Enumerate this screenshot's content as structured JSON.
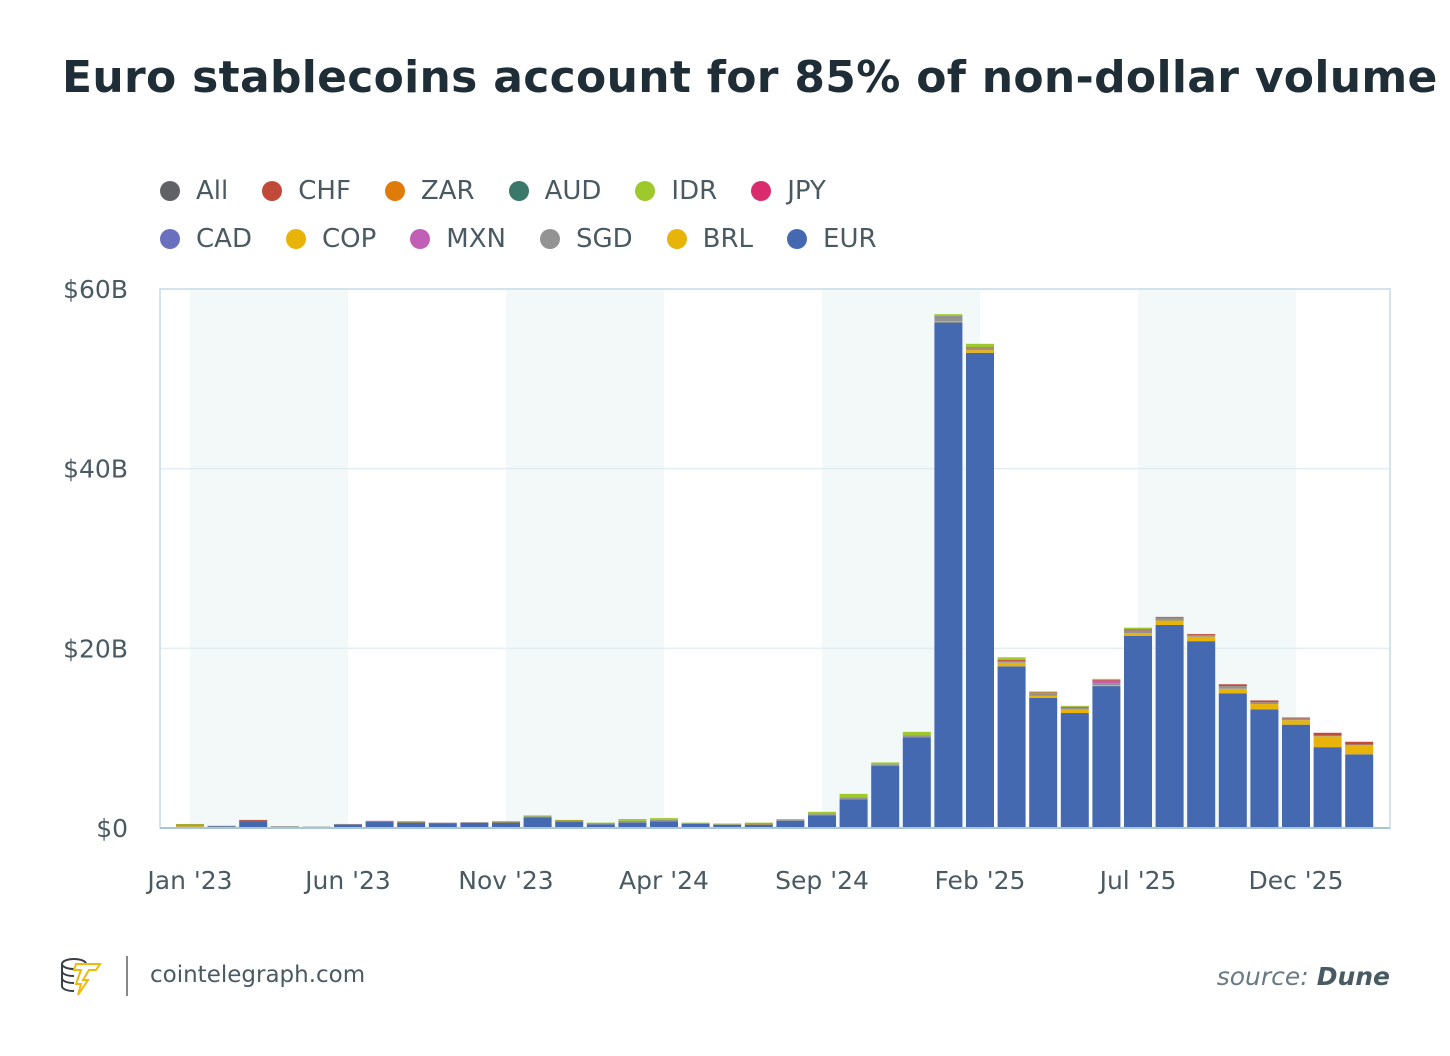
{
  "title": "Euro stablecoins account for 85% of non-dollar volume",
  "legend": [
    {
      "name": "All",
      "color": "#5f6166"
    },
    {
      "name": "CHF",
      "color": "#c0493a"
    },
    {
      "name": "ZAR",
      "color": "#de7b0b"
    },
    {
      "name": "AUD",
      "color": "#3a786b"
    },
    {
      "name": "IDR",
      "color": "#9dc92c"
    },
    {
      "name": "JPY",
      "color": "#d92c6e"
    },
    {
      "name": "CAD",
      "color": "#6a6fc0"
    },
    {
      "name": "COP",
      "color": "#e8b40a"
    },
    {
      "name": "MXN",
      "color": "#c05fb5"
    },
    {
      "name": "SGD",
      "color": "#939393"
    },
    {
      "name": "BRL",
      "color": "#e8b40a"
    },
    {
      "name": "EUR",
      "color": "#4469b0"
    }
  ],
  "chart_data": {
    "type": "bar",
    "stacked": true,
    "title": "Euro stablecoins account for 85% of non-dollar volume",
    "xlabel": "",
    "ylabel": "",
    "ylim": [
      0,
      60
    ],
    "y_ticks": [
      "$0",
      "$20B",
      "$40B",
      "$60B"
    ],
    "y_tick_values": [
      0,
      20,
      40,
      60
    ],
    "x_ticks": [
      "Jan '23",
      "Jun '23",
      "Nov '23",
      "Apr '24",
      "Sep '24",
      "Feb '25",
      "Jul '25",
      "Dec '25"
    ],
    "x_tick_indices": [
      0,
      5,
      10,
      15,
      20,
      25,
      30,
      35
    ],
    "grid": true,
    "legend_position": "top-left",
    "categories": [
      "2023-01",
      "2023-02",
      "2023-03",
      "2023-04",
      "2023-05",
      "2023-06",
      "2023-07",
      "2023-08",
      "2023-09",
      "2023-10",
      "2023-11",
      "2023-12",
      "2024-01",
      "2024-02",
      "2024-03",
      "2024-04",
      "2024-05",
      "2024-06",
      "2024-07",
      "2024-08",
      "2024-09",
      "2024-10",
      "2024-11",
      "2024-12",
      "2025-01",
      "2025-02",
      "2025-03",
      "2025-04",
      "2025-05",
      "2025-06",
      "2025-07",
      "2025-08",
      "2025-09",
      "2025-10",
      "2025-11",
      "2025-12",
      "2026-01",
      "2026-02"
    ],
    "series": [
      {
        "name": "EUR",
        "color": "#4469b0",
        "values": [
          0.15,
          0.2,
          0.8,
          0.15,
          0.12,
          0.4,
          0.7,
          0.65,
          0.55,
          0.6,
          0.65,
          1.2,
          0.7,
          0.4,
          0.6,
          0.75,
          0.45,
          0.35,
          0.4,
          0.8,
          1.4,
          3.2,
          6.9,
          10.1,
          56.3,
          52.9,
          18.0,
          14.5,
          12.8,
          15.8,
          21.4,
          22.6,
          20.8,
          15.0,
          13.2,
          11.5,
          9.0,
          8.2
        ]
      },
      {
        "name": "BRL",
        "color": "#e8b40a",
        "values": [
          0.1,
          0,
          0,
          0,
          0,
          0,
          0,
          0.05,
          0,
          0,
          0.05,
          0,
          0,
          0,
          0,
          0,
          0,
          0,
          0.05,
          0,
          0,
          0,
          0,
          0,
          0.1,
          0.3,
          0.4,
          0.2,
          0.4,
          0.1,
          0.3,
          0.5,
          0.5,
          0.5,
          0.6,
          0.5,
          1.2,
          1.0
        ]
      },
      {
        "name": "SGD",
        "color": "#939393",
        "values": [
          0.1,
          0.05,
          0.05,
          0.05,
          0.03,
          0.05,
          0.05,
          0.05,
          0.05,
          0.05,
          0.05,
          0.1,
          0.1,
          0.15,
          0.2,
          0.15,
          0.1,
          0.1,
          0.05,
          0.1,
          0.15,
          0.2,
          0.2,
          0.2,
          0.6,
          0.2,
          0.2,
          0.3,
          0.2,
          0.2,
          0.3,
          0.3,
          0.2,
          0.3,
          0.2,
          0.2,
          0.1,
          0.1
        ]
      },
      {
        "name": "MXN",
        "color": "#c05fb5",
        "values": [
          0,
          0,
          0,
          0,
          0,
          0,
          0.05,
          0,
          0,
          0,
          0,
          0,
          0,
          0,
          0,
          0,
          0,
          0,
          0,
          0,
          0,
          0,
          0,
          0,
          0,
          0,
          0,
          0,
          0,
          0.3,
          0,
          0,
          0,
          0,
          0,
          0,
          0,
          0
        ]
      },
      {
        "name": "CHF",
        "color": "#c0493a",
        "values": [
          0.05,
          0,
          0.05,
          0,
          0,
          0,
          0,
          0,
          0,
          0,
          0,
          0,
          0.05,
          0,
          0,
          0,
          0,
          0,
          0,
          0,
          0,
          0,
          0,
          0,
          0,
          0.1,
          0.1,
          0.1,
          0.1,
          0.1,
          0.1,
          0.1,
          0.1,
          0.2,
          0.2,
          0.1,
          0.3,
          0.3
        ]
      },
      {
        "name": "IDR",
        "color": "#9dc92c",
        "values": [
          0.05,
          0,
          0,
          0,
          0,
          0,
          0,
          0,
          0,
          0,
          0,
          0.1,
          0.05,
          0.05,
          0.2,
          0.2,
          0.05,
          0.05,
          0.1,
          0.1,
          0.25,
          0.4,
          0.2,
          0.4,
          0.2,
          0.4,
          0.3,
          0.1,
          0.1,
          0.1,
          0.2,
          0,
          0,
          0,
          0,
          0,
          0,
          0
        ]
      }
    ]
  },
  "footer": {
    "site": "cointelegraph.com",
    "source_label": "source:",
    "source_name": "Dune"
  }
}
